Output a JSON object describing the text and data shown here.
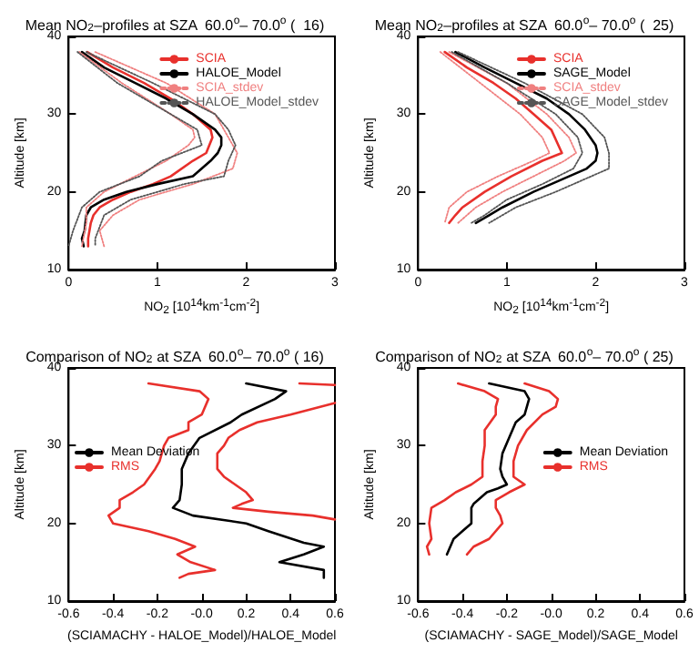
{
  "chart_data": [
    {
      "type": "line",
      "title": "Mean NO$_{2}$–profiles at SZA  60.0$^{o}$– 70.0$^{o}$ (  16)",
      "xlabel": "NO$_{2}$ [10$^{14}$km$^{-1}$cm$^{-2}$]",
      "ylabel": "Altitude [km]",
      "xlim": [
        0,
        3
      ],
      "xticks": [
        0,
        1,
        2,
        3
      ],
      "ylim": [
        10,
        40
      ],
      "yticks": [
        10,
        20,
        30,
        40
      ],
      "legend": "top right",
      "marker": "none",
      "grid": false,
      "series": [
        {
          "name": "SCIA",
          "color": "#e8302c",
          "line_style": "solid",
          "x": [
            0.21,
            0.5,
            0.85,
            1.15,
            1.4,
            1.6,
            1.62,
            1.55,
            1.4,
            1.15,
            0.95,
            0.7,
            0.5,
            0.35,
            0.28,
            0.25,
            0.22,
            0.22
          ],
          "values": [
            38,
            36,
            34,
            32,
            30,
            28,
            27,
            25,
            24,
            22,
            21,
            20,
            19,
            18,
            17,
            16,
            14,
            13
          ]
        },
        {
          "name": "HALOE_Model",
          "color": "#000000",
          "line_style": "solid",
          "x": [
            0.15,
            0.4,
            0.75,
            1.1,
            1.4,
            1.65,
            1.72,
            1.72,
            1.68,
            1.6,
            1.4,
            1.0,
            0.65,
            0.4,
            0.25,
            0.2,
            0.18,
            0.15,
            0.17
          ],
          "values": [
            38,
            36,
            34,
            32,
            30,
            28,
            27,
            26,
            25,
            24,
            22,
            21,
            20,
            19,
            18,
            17,
            15,
            14,
            13
          ]
        },
        {
          "name": "SCIA_stdev",
          "color": "#f08080",
          "line_style": "dotted",
          "x": [
            0.12,
            0.6,
            1.15,
            1.4,
            1.42,
            1.35,
            1.1,
            0.75,
            0.4,
            0.2,
            0.2,
            0.15
          ],
          "values": [
            38,
            34,
            30,
            28,
            27,
            26,
            24,
            22,
            20,
            18,
            16,
            13
          ]
        },
        {
          "color": "#f08080",
          "line_style": "dotted",
          "x": [
            0.3,
            1.1,
            1.65,
            1.8,
            1.9,
            1.85,
            1.4,
            0.8,
            0.5,
            0.35,
            0.4
          ],
          "values": [
            38,
            34,
            30,
            27,
            25,
            23,
            21,
            19,
            17,
            15,
            13
          ]
        },
        {
          "name": "HALOE_Model_stdev",
          "color": "#555555",
          "line_style": "dotted",
          "x": [
            0.1,
            0.55,
            1.15,
            1.45,
            1.5,
            1.05,
            0.8,
            0.35,
            0.15,
            0.05,
            0
          ],
          "values": [
            38,
            34,
            30,
            28,
            26,
            24,
            22,
            20,
            18,
            15,
            13
          ]
        },
        {
          "color": "#555555",
          "line_style": "dotted",
          "x": [
            0.2,
            0.95,
            1.65,
            1.8,
            1.88,
            1.8,
            1.75,
            1.3,
            0.7,
            0.4,
            0.3,
            0.3
          ],
          "values": [
            38,
            34,
            30,
            28,
            26,
            24,
            22,
            21,
            19,
            17,
            14,
            13
          ]
        }
      ]
    },
    {
      "type": "line",
      "title": "Mean NO$_{2}$–profiles at SZA  60.0$^{o}$– 70.0$^{o}$ (  25)",
      "xlabel": "NO$_{2}$ [10$^{14}$km$^{-1}$cm$^{-2}$]",
      "ylabel": "Altitude [km]",
      "xlim": [
        0,
        3
      ],
      "xticks": [
        0,
        1,
        2,
        3
      ],
      "ylim": [
        10,
        40
      ],
      "yticks": [
        10,
        20,
        30,
        40
      ],
      "legend": "top right",
      "marker": "none",
      "grid": false,
      "series": [
        {
          "name": "SCIA",
          "color": "#e8302c",
          "line_style": "solid",
          "x": [
            0.3,
            0.55,
            0.85,
            1.1,
            1.3,
            1.5,
            1.58,
            1.62,
            1.4,
            1.05,
            0.75,
            0.5,
            0.42,
            0.35
          ],
          "values": [
            38,
            36,
            34,
            32,
            30,
            28,
            26,
            25,
            24,
            22,
            20,
            18,
            17,
            16
          ]
        },
        {
          "name": "SAGE_Model",
          "color": "#000000",
          "line_style": "solid",
          "x": [
            0.42,
            0.75,
            1.1,
            1.45,
            1.7,
            1.88,
            2.0,
            2.02,
            2.0,
            1.9,
            1.7,
            1.3,
            0.95,
            0.8,
            0.65
          ],
          "values": [
            38,
            36,
            34,
            32,
            30,
            28,
            26,
            25,
            24,
            23,
            22,
            20,
            18,
            17,
            16
          ]
        },
        {
          "name": "SCIA_stdev",
          "color": "#f08080",
          "line_style": "dotted",
          "x": [
            0.25,
            0.7,
            1.15,
            1.4,
            1.48,
            1.3,
            0.9,
            0.55,
            0.35,
            0.3
          ],
          "values": [
            38,
            34,
            30,
            27,
            25,
            24,
            22,
            20,
            18,
            16
          ]
        },
        {
          "color": "#f08080",
          "line_style": "dotted",
          "x": [
            0.35,
            1.0,
            1.45,
            1.7,
            1.78,
            1.65,
            1.3,
            0.95,
            0.65,
            0.45
          ],
          "values": [
            38,
            34,
            30,
            27,
            25,
            24,
            22,
            20,
            18,
            16
          ]
        },
        {
          "name": "SAGE_Model_stdev",
          "color": "#555555",
          "line_style": "dotted",
          "x": [
            0.38,
            1.0,
            1.55,
            1.8,
            1.85,
            1.75,
            1.4,
            1.0,
            0.75,
            0.6
          ],
          "values": [
            38,
            34,
            30,
            27,
            25,
            23,
            21,
            19,
            17,
            16
          ]
        },
        {
          "color": "#555555",
          "line_style": "dotted",
          "x": [
            0.45,
            1.2,
            1.85,
            2.1,
            2.15,
            2.15,
            1.95,
            1.55,
            1.1,
            0.8
          ],
          "values": [
            38,
            34,
            30,
            27,
            25,
            23,
            22,
            20,
            18,
            16
          ]
        }
      ]
    },
    {
      "type": "line",
      "title": "Comparison of NO$_{2}$ at SZA  60.0$^{o}$– 70.0$^{o}$ ( 16)",
      "xlabel": "(SCIAMACHY - HALOE_Model)/HALOE_Model",
      "ylabel": "Altitude [km]",
      "xlim": [
        -0.6,
        0.6
      ],
      "xticks": [
        -0.6,
        -0.4,
        -0.2,
        {
          "value": 0,
          "label": "-0.0"
        },
        0.2,
        0.4,
        0.6
      ],
      "ylim": [
        10,
        40
      ],
      "yticks": [
        10,
        20,
        30,
        40
      ],
      "legend": "left",
      "marker": "none",
      "grid": false,
      "series": [
        {
          "name": "Mean Deviation",
          "color": "#000000",
          "line_style": "solid",
          "x": [
            0.2,
            0.38,
            0.33,
            0.18,
            0.13,
            -0.01,
            -0.06,
            -0.09,
            -0.09,
            -0.1,
            -0.13,
            -0.04,
            0.2,
            0.3,
            0.46,
            0.55,
            0.46,
            0.35,
            0.55,
            0.55
          ],
          "values": [
            38,
            37,
            36,
            34,
            33,
            31,
            29,
            27,
            25,
            23,
            22,
            21,
            20,
            19,
            17.5,
            17,
            16,
            15,
            14,
            13
          ]
        },
        {
          "name": "RMS",
          "color": "#e8302c",
          "line_style": "solid",
          "x": [
            -0.24,
            -0.01,
            0.03,
            0,
            -0.06,
            -0.06,
            -0.15,
            -0.17,
            -0.19,
            -0.21,
            -0.26,
            -0.31,
            -0.37,
            -0.37,
            -0.42,
            -0.4,
            -0.24,
            -0.12,
            -0.03,
            -0.11,
            -0.05,
            0.06,
            -0.06,
            -0.1
          ],
          "values": [
            38,
            37,
            36,
            34,
            33,
            32,
            31,
            30,
            28,
            27,
            25,
            24,
            23,
            22,
            21,
            20,
            19,
            18,
            17,
            16,
            15,
            14,
            13.5,
            13
          ]
        },
        {
          "color": "#e8302c",
          "line_style": "solid",
          "x": [
            0.44,
            0.6,
            null,
            0.6,
            0.4,
            0.25,
            0.17,
            0.12,
            0.1,
            0.07,
            0.07,
            0.1,
            0.15,
            0.2,
            0.23,
            0.18,
            0.14,
            0.3,
            0.5,
            0.6
          ],
          "values": [
            38,
            37.8,
            null,
            35.5,
            34,
            33,
            32,
            31,
            30,
            29,
            27,
            26,
            25,
            24,
            23,
            22.5,
            22,
            21.5,
            21,
            20.5
          ]
        }
      ]
    },
    {
      "type": "line",
      "title": "Comparison of NO$_{2}$ at SZA  60.0$^{o}$– 70.0$^{o}$ ( 25)",
      "xlabel": "(SCIAMACHY - SAGE_Model)/SAGE_Model",
      "ylabel": "Altitude [km]",
      "xlim": [
        -0.6,
        0.6
      ],
      "xticks": [
        -0.6,
        -0.4,
        -0.2,
        {
          "value": 0,
          "label": "-0.0"
        },
        0.2,
        0.4,
        0.6
      ],
      "ylim": [
        10,
        40
      ],
      "yticks": [
        10,
        20,
        30,
        40
      ],
      "legend": "right",
      "marker": "none",
      "grid": false,
      "series": [
        {
          "name": "Mean Deviation",
          "color": "#000000",
          "line_style": "solid",
          "x": [
            -0.28,
            -0.12,
            -0.1,
            -0.12,
            -0.16,
            -0.19,
            -0.22,
            -0.23,
            -0.22,
            -0.2,
            -0.24,
            -0.29,
            -0.35,
            -0.36,
            -0.36,
            -0.44,
            -0.47
          ],
          "values": [
            38,
            37,
            36,
            34,
            33,
            31,
            29,
            27,
            26,
            25,
            24.5,
            24,
            22.5,
            22,
            20,
            18,
            16
          ]
        },
        {
          "name": "RMS",
          "color": "#e8302c",
          "line_style": "solid",
          "x": [
            -0.42,
            -0.3,
            -0.24,
            -0.25,
            -0.25,
            -0.3,
            -0.3,
            -0.31,
            -0.31,
            -0.36,
            -0.43,
            -0.48,
            -0.54,
            -0.55,
            -0.54,
            -0.56,
            -0.55
          ],
          "values": [
            38,
            37,
            36,
            35,
            34,
            32,
            30,
            28,
            26,
            25,
            24,
            23,
            22,
            20,
            18,
            17,
            16
          ]
        },
        {
          "color": "#e8302c",
          "line_style": "solid",
          "x": [
            -0.12,
            -0.01,
            0.03,
            0.02,
            -0.04,
            -0.11,
            -0.15,
            -0.17,
            -0.17,
            -0.12,
            -0.19,
            -0.25,
            -0.25,
            -0.23,
            -0.22,
            -0.28,
            -0.35,
            -0.38
          ],
          "values": [
            38,
            37,
            36,
            35,
            34,
            32,
            30,
            28,
            26,
            25,
            24,
            23,
            22,
            21,
            20,
            18,
            17,
            16
          ]
        }
      ]
    }
  ]
}
